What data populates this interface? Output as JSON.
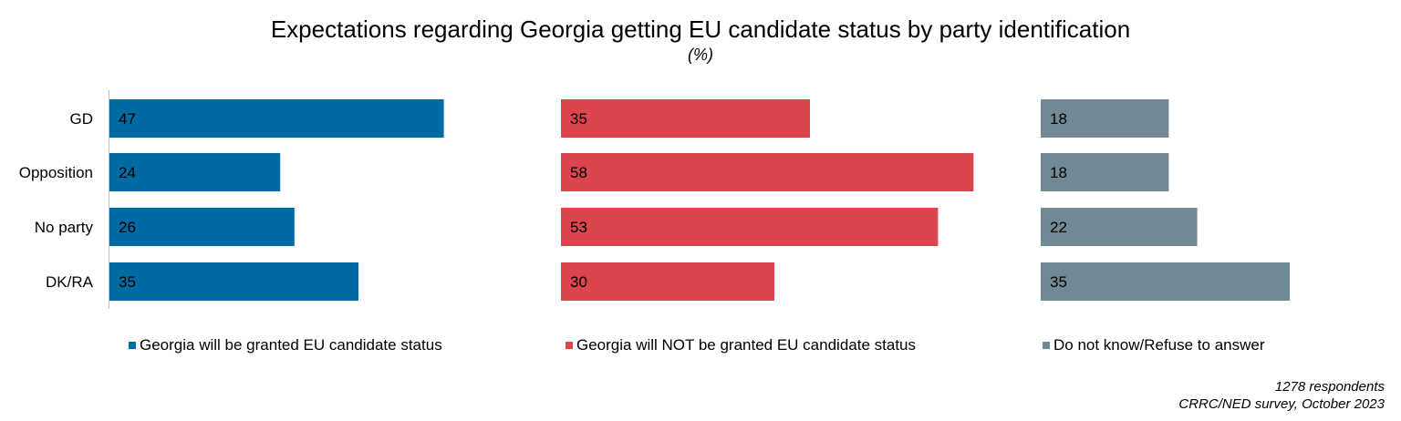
{
  "chart_data": {
    "type": "bar",
    "title": "Expectations regarding Georgia getting EU candidate status by party identification",
    "subtitle": "(%)",
    "categories": [
      "GD",
      "Opposition",
      "No party",
      "DK/RA"
    ],
    "series": [
      {
        "name": "Georgia will be granted EU candidate status",
        "values": [
          47,
          24,
          26,
          35
        ],
        "color": "#006AA3"
      },
      {
        "name": "Georgia will NOT be granted EU candidate status",
        "values": [
          35,
          58,
          53,
          30
        ],
        "color": "#DC444E"
      },
      {
        "name": "Do not know/Refuse to answer",
        "values": [
          18,
          18,
          22,
          35
        ],
        "color": "#718995"
      }
    ],
    "legend": "bottom",
    "grid": false
  },
  "footer": {
    "respondents": "1278 respondents",
    "source": "CRRC/NED survey, October 2023"
  }
}
